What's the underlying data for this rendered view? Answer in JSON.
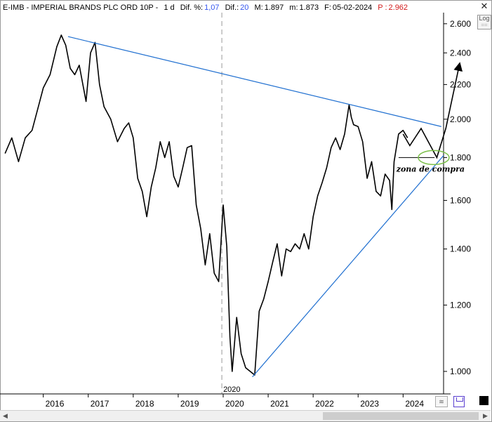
{
  "header": {
    "symbol": "E-IMB - IMPERIAL BRANDS PLC ORD 10P -",
    "timeframe": "1 d",
    "dif_pct_label": "Dif. %:",
    "dif_pct_value": "1,07",
    "dif_label": "Dif.:",
    "dif_value": "20",
    "max_label": "M:",
    "max_value": "1.897",
    "min_label": "m:",
    "min_value": "1.873",
    "date_label": "F:",
    "date_value": "05-02-2024",
    "p_label": "P :",
    "p_value": "2.962"
  },
  "toolbar": {
    "log_label": "Log",
    "close_symbol": "✕"
  },
  "chart_data": {
    "type": "line",
    "scale": "log",
    "y_tick_labels": [
      "2.600",
      "2.400",
      "2.200",
      "2.000",
      "1.800",
      "1.600",
      "1.400",
      "1.200",
      "1.000"
    ],
    "y_ticks": [
      2600,
      2400,
      2200,
      2000,
      1800,
      1600,
      1400,
      1200,
      1000
    ],
    "x_tick_labels": [
      "2016",
      "2017",
      "2018",
      "2019",
      "2020",
      "2021",
      "2022",
      "2023",
      "2024"
    ],
    "x_ticks": [
      2016,
      2017,
      2018,
      2019,
      2020,
      2021,
      2022,
      2023,
      2024
    ],
    "x_range": [
      2015.1,
      2024.9
    ],
    "y_range": [
      940,
      2660
    ],
    "cursor_label": "2020",
    "cursor_x": 2019.97,
    "annotation": "zona de compra",
    "series": [
      {
        "x": [
          2015.15,
          2015.3,
          2015.45,
          2015.6,
          2015.75,
          2015.9,
          2016.0,
          2016.15,
          2016.3,
          2016.4,
          2016.5,
          2016.6,
          2016.7,
          2016.8,
          2016.95,
          2017.05,
          2017.15,
          2017.25,
          2017.35,
          2017.5,
          2017.65,
          2017.8,
          2017.9,
          2018.0,
          2018.1,
          2018.2,
          2018.3,
          2018.4,
          2018.5,
          2018.6,
          2018.7,
          2018.8,
          2018.9,
          2019.0,
          2019.1,
          2019.2,
          2019.3,
          2019.4,
          2019.5,
          2019.6,
          2019.7,
          2019.8,
          2019.9,
          2020.0,
          2020.08,
          2020.15,
          2020.2,
          2020.3,
          2020.4,
          2020.5,
          2020.6,
          2020.7,
          2020.8,
          2020.9,
          2021.0,
          2021.1,
          2021.2,
          2021.3,
          2021.4,
          2021.5,
          2021.6,
          2021.7,
          2021.8,
          2021.9,
          2022.0,
          2022.1,
          2022.2,
          2022.3,
          2022.4,
          2022.5,
          2022.6,
          2022.7,
          2022.8,
          2022.85,
          2022.9,
          2023.0,
          2023.1,
          2023.2,
          2023.3,
          2023.4,
          2023.5,
          2023.6,
          2023.7,
          2023.75,
          2023.8,
          2023.9,
          2024.0,
          2024.1
        ],
        "y": [
          1820,
          1900,
          1780,
          1900,
          1940,
          2080,
          2180,
          2260,
          2440,
          2520,
          2450,
          2300,
          2260,
          2320,
          2100,
          2400,
          2470,
          2200,
          2070,
          2000,
          1880,
          1950,
          1980,
          1900,
          1700,
          1640,
          1530,
          1660,
          1750,
          1880,
          1800,
          1880,
          1710,
          1660,
          1750,
          1850,
          1860,
          1580,
          1480,
          1340,
          1460,
          1310,
          1280,
          1580,
          1410,
          1100,
          1000,
          1160,
          1050,
          1010,
          1000,
          990,
          1180,
          1220,
          1280,
          1350,
          1420,
          1300,
          1400,
          1390,
          1420,
          1400,
          1460,
          1400,
          1530,
          1620,
          1680,
          1750,
          1850,
          1900,
          1840,
          1920,
          2080,
          2010,
          1970,
          1960,
          1880,
          1700,
          1780,
          1640,
          1620,
          1720,
          1690,
          1560,
          1780,
          1920,
          1940,
          1900
        ]
      }
    ],
    "trendlines": [
      {
        "x": [
          2016.55,
          2024.85
        ],
        "y": [
          2510,
          1960
        ]
      },
      {
        "x": [
          2020.65,
          2024.9
        ],
        "y": [
          985,
          1810
        ]
      }
    ],
    "projection": {
      "x": [
        2024.0,
        2024.15,
        2024.4,
        2024.75,
        2024.95,
        2025.25
      ],
      "y": [
        1920,
        1860,
        1950,
        1800,
        1950,
        2320
      ]
    },
    "buy_zone": {
      "x": 2024.68,
      "y": 1800
    }
  }
}
